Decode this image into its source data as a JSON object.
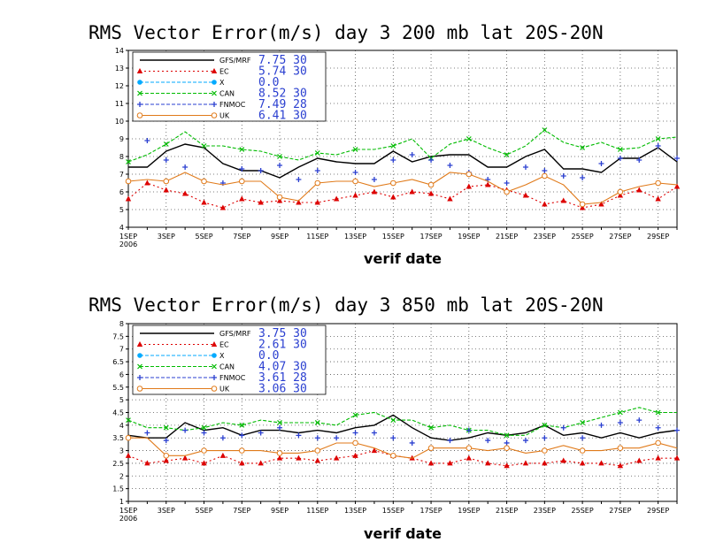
{
  "chart_data": [
    {
      "type": "line",
      "title": "RMS Vector Error(m/s) day 3  200 mb   lat 20S-20N",
      "xlabel": "verif date",
      "year_label": "2006",
      "x_tick_labels": [
        "1SEP",
        "3SEP",
        "5SEP",
        "7SEP",
        "9SEP",
        "11SEP",
        "13SEP",
        "15SEP",
        "17SEP",
        "19SEP",
        "21SEP",
        "23SEP",
        "25SEP",
        "27SEP",
        "29SEP"
      ],
      "ylim": [
        4,
        14
      ],
      "y_ticks": [
        4,
        5,
        6,
        7,
        8,
        9,
        10,
        11,
        12,
        13,
        14
      ],
      "grid": true,
      "legend_position": "top-left",
      "series": [
        {
          "name": "GFS/MRF",
          "stat": "7.75  30",
          "color": "#000000",
          "style": "solid",
          "marker": "none",
          "values": [
            7.4,
            7.4,
            8.3,
            8.7,
            8.5,
            7.6,
            7.2,
            7.2,
            6.8,
            7.4,
            7.9,
            7.7,
            7.6,
            7.6,
            8.3,
            7.7,
            8.0,
            8.1,
            8.1,
            7.4,
            7.4,
            8.0,
            8.4,
            7.3,
            7.3,
            7.1,
            7.9,
            7.9,
            8.5,
            7.7
          ]
        },
        {
          "name": "EC",
          "stat": "5.74  30",
          "color": "#dd0000",
          "style": "dotted",
          "marker": "triangle",
          "values": [
            5.6,
            6.5,
            6.1,
            5.9,
            5.4,
            5.1,
            5.6,
            5.4,
            5.5,
            5.4,
            5.4,
            5.6,
            5.8,
            6.0,
            5.7,
            6.0,
            5.9,
            5.6,
            6.3,
            6.4,
            6.1,
            5.8,
            5.3,
            5.5,
            5.1,
            5.3,
            5.8,
            6.1,
            5.6,
            6.3
          ]
        },
        {
          "name": "X",
          "stat": "0.0",
          "color": "#00aaff",
          "style": "dashed",
          "marker": "circle",
          "values": []
        },
        {
          "name": "CAN",
          "stat": "8.52  30",
          "color": "#00bb00",
          "style": "dashed",
          "marker": "x",
          "values": [
            7.7,
            8.1,
            8.7,
            9.4,
            8.6,
            8.6,
            8.4,
            8.3,
            8.0,
            7.8,
            8.2,
            8.1,
            8.4,
            8.4,
            8.6,
            9.0,
            7.9,
            8.7,
            9.0,
            8.5,
            8.1,
            8.6,
            9.5,
            8.8,
            8.5,
            8.8,
            8.4,
            8.5,
            9.0,
            9.1
          ]
        },
        {
          "name": "FNMOC",
          "stat": "7.49  28",
          "color": "#2a3fd0",
          "style": "dashed",
          "marker": "plus",
          "values": [
            null,
            8.9,
            7.8,
            7.4,
            null,
            6.5,
            7.3,
            7.2,
            7.5,
            6.7,
            7.2,
            null,
            7.1,
            6.7,
            7.8,
            8.1,
            7.8,
            7.5,
            7.1,
            6.7,
            6.5,
            7.4,
            7.2,
            6.9,
            6.8,
            7.6,
            7.9,
            7.8,
            8.6,
            7.9
          ]
        },
        {
          "name": "UK",
          "stat": "6.41  30",
          "color": "#e07a1a",
          "style": "solid",
          "marker": "circle-open",
          "values": [
            6.6,
            6.7,
            6.6,
            7.1,
            6.6,
            6.4,
            6.6,
            6.6,
            5.7,
            5.5,
            6.5,
            6.6,
            6.6,
            6.3,
            6.5,
            6.7,
            6.4,
            7.1,
            7.0,
            6.6,
            6.0,
            6.4,
            6.9,
            6.4,
            5.3,
            5.4,
            6.0,
            6.3,
            6.5,
            6.4
          ]
        }
      ]
    },
    {
      "type": "line",
      "title": "RMS Vector Error(m/s) day 3  850 mb   lat 20S-20N",
      "xlabel": "verif date",
      "year_label": "2006",
      "x_tick_labels": [
        "1SEP",
        "3SEP",
        "5SEP",
        "7SEP",
        "9SEP",
        "11SEP",
        "13SEP",
        "15SEP",
        "17SEP",
        "19SEP",
        "21SEP",
        "23SEP",
        "25SEP",
        "27SEP",
        "29SEP"
      ],
      "ylim": [
        1,
        8
      ],
      "y_ticks": [
        1,
        1.5,
        2,
        2.5,
        3,
        3.5,
        4,
        4.5,
        5,
        5.5,
        6,
        6.5,
        7,
        7.5,
        8
      ],
      "grid": true,
      "legend_position": "top-left",
      "series": [
        {
          "name": "GFS/MRF",
          "stat": "3.75  30",
          "color": "#000000",
          "style": "solid",
          "marker": "none",
          "values": [
            3.6,
            3.5,
            3.5,
            4.1,
            3.8,
            3.9,
            3.6,
            3.8,
            3.8,
            3.7,
            3.8,
            3.7,
            3.9,
            4.0,
            4.4,
            3.9,
            3.5,
            3.4,
            3.5,
            3.7,
            3.6,
            3.7,
            4.0,
            3.6,
            3.7,
            3.5,
            3.7,
            3.5,
            3.7,
            3.8
          ]
        },
        {
          "name": "EC",
          "stat": "2.61  30",
          "color": "#dd0000",
          "style": "dotted",
          "marker": "triangle",
          "values": [
            2.8,
            2.5,
            2.6,
            2.7,
            2.5,
            2.8,
            2.5,
            2.5,
            2.7,
            2.7,
            2.6,
            2.7,
            2.8,
            3.0,
            2.8,
            2.7,
            2.5,
            2.5,
            2.7,
            2.5,
            2.4,
            2.5,
            2.5,
            2.6,
            2.5,
            2.5,
            2.4,
            2.6,
            2.7,
            2.7
          ]
        },
        {
          "name": "X",
          "stat": "0.0",
          "color": "#00aaff",
          "style": "dashed",
          "marker": "circle",
          "values": []
        },
        {
          "name": "CAN",
          "stat": "4.07  30",
          "color": "#00bb00",
          "style": "dashed",
          "marker": "x",
          "values": [
            4.2,
            3.9,
            3.9,
            3.8,
            3.9,
            4.1,
            4.0,
            4.2,
            4.1,
            4.1,
            4.1,
            4.0,
            4.4,
            4.5,
            4.2,
            4.2,
            3.9,
            4.0,
            3.8,
            3.8,
            3.6,
            3.6,
            4.0,
            3.9,
            4.1,
            4.3,
            4.5,
            4.7,
            4.5,
            4.5
          ]
        },
        {
          "name": "FNMOC",
          "stat": "3.61  28",
          "color": "#2a3fd0",
          "style": "dashed",
          "marker": "plus",
          "values": [
            null,
            3.7,
            3.4,
            3.8,
            3.7,
            3.5,
            3.6,
            3.7,
            3.9,
            3.6,
            3.5,
            3.5,
            3.7,
            3.7,
            3.5,
            3.3,
            null,
            3.4,
            3.8,
            3.4,
            3.3,
            3.4,
            3.5,
            3.9,
            3.5,
            4.0,
            4.1,
            4.2,
            3.9,
            3.8
          ]
        },
        {
          "name": "UK",
          "stat": "3.06  30",
          "color": "#e07a1a",
          "style": "solid",
          "marker": "circle-open",
          "values": [
            3.5,
            3.5,
            2.8,
            2.8,
            3.0,
            3.0,
            3.0,
            3.0,
            2.9,
            2.9,
            3.0,
            3.3,
            3.3,
            3.1,
            2.8,
            2.7,
            3.1,
            3.1,
            3.1,
            3.0,
            3.1,
            2.9,
            3.0,
            3.2,
            3.0,
            3.0,
            3.1,
            3.1,
            3.3,
            3.1
          ]
        }
      ]
    }
  ]
}
